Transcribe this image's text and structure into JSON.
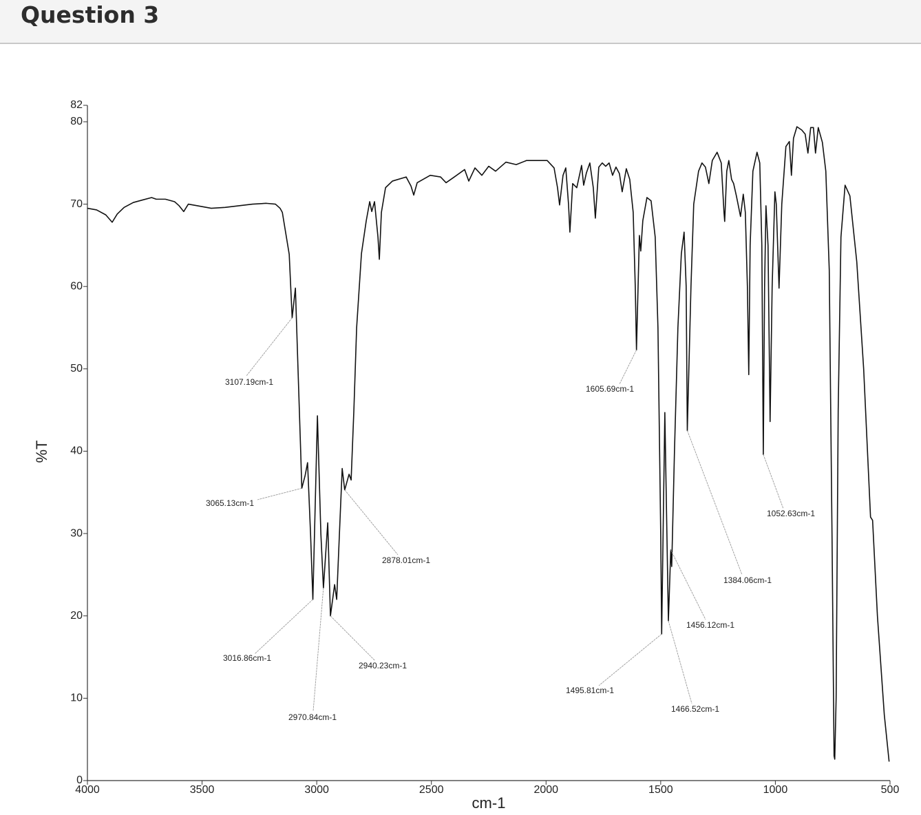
{
  "header": {
    "title": "Question 3"
  },
  "chart_data": {
    "type": "line",
    "x_label": "cm-1",
    "y_label": "%T",
    "xlim": [
      4000,
      500
    ],
    "ylim": [
      0,
      82
    ],
    "xticks": [
      4000,
      3500,
      3000,
      2500,
      2000,
      1500,
      1000,
      500
    ],
    "yticks": [
      0,
      10,
      20,
      30,
      40,
      50,
      60,
      70,
      80,
      82
    ],
    "series": [
      {
        "name": "spectrum",
        "color": "#111111",
        "x": [
          4000,
          3960,
          3920,
          3892,
          3870,
          3840,
          3800,
          3760,
          3720,
          3700,
          3660,
          3620,
          3600,
          3580,
          3560,
          3520,
          3460,
          3400,
          3340,
          3280,
          3220,
          3180,
          3160,
          3150,
          3120,
          3107.19,
          3093,
          3084,
          3070,
          3065.13,
          3051,
          3040,
          3027,
          3016.86,
          2997,
          2982,
          2970.84,
          2952,
          2940.23,
          2922,
          2913,
          2901,
          2889,
          2878.01,
          2859,
          2850,
          2838,
          2826,
          2805,
          2784,
          2769,
          2760,
          2748,
          2733,
          2727,
          2718,
          2700,
          2670,
          2610,
          2589,
          2577,
          2562,
          2505,
          2460,
          2436,
          2400,
          2355,
          2337,
          2310,
          2280,
          2250,
          2220,
          2175,
          2130,
          2085,
          2040,
          1995,
          1965,
          1950,
          1941,
          1926,
          1914,
          1902,
          1896,
          1884,
          1866,
          1845,
          1836,
          1824,
          1809,
          1794,
          1785,
          1770,
          1755,
          1740,
          1725,
          1710,
          1695,
          1680,
          1668,
          1650,
          1635,
          1620,
          1611,
          1605.69,
          1593,
          1587,
          1578,
          1560,
          1542,
          1524,
          1512,
          1500,
          1495.81,
          1482,
          1473,
          1466.52,
          1456.12,
          1452,
          1440,
          1425,
          1410,
          1398,
          1389,
          1384.06,
          1368,
          1356,
          1335,
          1320,
          1305,
          1290,
          1275,
          1254,
          1236,
          1224,
          1221,
          1212,
          1203,
          1191,
          1182,
          1170,
          1152,
          1140,
          1131,
          1122,
          1116,
          1110,
          1098,
          1080,
          1068,
          1059,
          1052.63,
          1047,
          1041,
          1032,
          1023,
          1014,
          1002,
          996,
          984,
          972,
          954,
          939,
          930,
          921,
          906,
          885,
          870,
          858,
          846,
          834,
          825,
          813,
          795,
          780,
          765,
          753,
          744,
          741,
          735,
          726,
          714,
          696,
          675,
          645,
          615,
          585,
          576,
          555,
          525,
          504
        ],
        "values": [
          69.5,
          69.3,
          68.7,
          67.8,
          68.8,
          69.6,
          70.2,
          70.5,
          70.8,
          70.6,
          70.6,
          70.3,
          69.8,
          69.1,
          70.0,
          69.8,
          69.5,
          69.6,
          69.8,
          70.0,
          70.1,
          70.0,
          69.5,
          69.0,
          63.9,
          56.2,
          59.8,
          52.0,
          40.0,
          35.5,
          37.0,
          38.6,
          30.0,
          22.0,
          44.3,
          30.0,
          23.4,
          31.3,
          20.0,
          23.8,
          22.0,
          30.0,
          37.9,
          35.3,
          37.2,
          36.5,
          45.0,
          55.0,
          64.0,
          68.0,
          70.3,
          69.1,
          70.3,
          66.0,
          63.3,
          69.0,
          72.0,
          72.8,
          73.3,
          72.2,
          71.1,
          72.6,
          73.5,
          73.3,
          72.6,
          73.3,
          74.2,
          72.8,
          74.4,
          73.5,
          74.6,
          74.0,
          75.1,
          74.8,
          75.3,
          75.3,
          75.3,
          74.4,
          72.0,
          69.9,
          73.5,
          74.4,
          70.0,
          66.6,
          72.5,
          72.0,
          74.7,
          72.3,
          73.8,
          75.0,
          72.0,
          68.3,
          74.5,
          75.0,
          74.6,
          75.0,
          73.5,
          74.5,
          73.7,
          71.5,
          74.3,
          73.0,
          69.0,
          60.0,
          52.3,
          66.2,
          64.3,
          68.0,
          70.8,
          70.4,
          66.0,
          55.0,
          30.0,
          17.8,
          44.7,
          30.0,
          19.4,
          28.0,
          26.0,
          40.0,
          55.0,
          64.0,
          66.6,
          60.0,
          42.5,
          60.0,
          70.0,
          74.0,
          75.0,
          74.5,
          72.5,
          75.3,
          76.3,
          75.0,
          69.0,
          67.9,
          74.0,
          75.3,
          73.0,
          72.5,
          71.0,
          68.5,
          71.2,
          69.0,
          60.0,
          49.3,
          65.0,
          74.0,
          76.3,
          75.0,
          65.0,
          39.6,
          60.0,
          69.8,
          65.0,
          43.6,
          60.0,
          71.5,
          70.0,
          59.8,
          70.0,
          77.0,
          77.6,
          73.5,
          78.0,
          79.4,
          79.0,
          78.5,
          76.2,
          79.3,
          79.3,
          76.2,
          79.3,
          77.5,
          74.0,
          62.0,
          30.0,
          3.0,
          2.6,
          10.0,
          45.0,
          66.0,
          72.3,
          71.0,
          63.0,
          50.0,
          32.0,
          31.6,
          20.0,
          8.0,
          2.3
        ]
      }
    ],
    "annotations": [
      {
        "x": 3107.19,
        "y": 56.2,
        "label": "3107.19cm-1"
      },
      {
        "x": 3065.13,
        "y": 35.5,
        "label": "3065.13cm-1"
      },
      {
        "x": 3016.86,
        "y": 22.0,
        "label": "3016.86cm-1"
      },
      {
        "x": 2970.84,
        "y": 23.4,
        "label": "2970.84cm-1"
      },
      {
        "x": 2940.23,
        "y": 20.0,
        "label": "2940.23cm-1"
      },
      {
        "x": 2878.01,
        "y": 35.3,
        "label": "2878.01cm-1"
      },
      {
        "x": 1605.69,
        "y": 52.3,
        "label": "1605.69cm-1"
      },
      {
        "x": 1495.81,
        "y": 17.8,
        "label": "1495.81cm-1"
      },
      {
        "x": 1466.52,
        "y": 19.4,
        "label": "1466.52cm-1"
      },
      {
        "x": 1456.12,
        "y": 28.0,
        "label": "1456.12cm-1"
      },
      {
        "x": 1384.06,
        "y": 42.5,
        "label": "1384.06cm-1"
      },
      {
        "x": 1052.63,
        "y": 39.6,
        "label": "1052.63cm-1"
      }
    ]
  }
}
